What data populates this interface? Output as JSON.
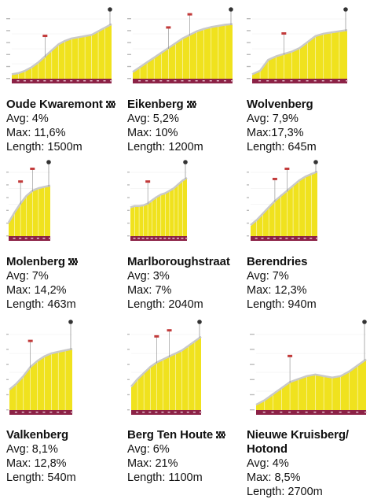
{
  "colors": {
    "fill": "#f0e21e",
    "edge": "#c9c9c9",
    "axis": "#8c2246",
    "text": "#111111"
  },
  "cobble_icon": "cobblestone-icon",
  "climbs": [
    {
      "id": "oude-kwaremont",
      "title": "Oude Kwaremont",
      "cobbled": true,
      "title_line2": "",
      "avg": "Avg: 4%",
      "max": "Max: 11,6%",
      "length": "Length: 1500m",
      "profile_level": [
        0.06,
        0.08,
        0.12,
        0.18,
        0.26,
        0.36,
        0.46,
        0.56,
        0.62,
        0.66,
        0.68,
        0.7,
        0.72,
        0.78,
        0.84,
        0.9
      ]
    },
    {
      "id": "eikenberg",
      "title": "Eikenberg",
      "cobbled": true,
      "title_line2": "",
      "avg": "Avg: 5,2%",
      "max": "Max: 10%",
      "length": "Length: 1200m",
      "profile_level": [
        0.1,
        0.18,
        0.26,
        0.34,
        0.42,
        0.5,
        0.58,
        0.66,
        0.72,
        0.78,
        0.82,
        0.85,
        0.87,
        0.89,
        0.9
      ]
    },
    {
      "id": "wolvenberg",
      "title": "Wolvenberg",
      "cobbled": false,
      "title_line2": "",
      "avg": "Avg: 7,9%",
      "max": "Max:17,3%",
      "length": "Length: 645m",
      "profile_level": [
        0.06,
        0.12,
        0.3,
        0.36,
        0.4,
        0.44,
        0.5,
        0.6,
        0.7,
        0.74,
        0.76,
        0.78,
        0.8
      ]
    },
    {
      "id": "molenberg",
      "title": "Molenberg",
      "cobbled": true,
      "title_line2": "",
      "avg": "Avg: 7%",
      "max": "Max: 14,2%",
      "length": "Length: 463m",
      "profile_level": [
        0.2,
        0.36,
        0.5,
        0.62,
        0.7,
        0.74,
        0.76,
        0.78
      ]
    },
    {
      "id": "marlboroughstraat",
      "title": "Marlboroughstraat",
      "cobbled": false,
      "title_line2": "",
      "avg": "Avg: 3%",
      "max": "Max: 7%",
      "length": "Length: 2040m",
      "profile_level": [
        0.44,
        0.46,
        0.46,
        0.47,
        0.5,
        0.55,
        0.6,
        0.64,
        0.66,
        0.7,
        0.74,
        0.8,
        0.86,
        0.9
      ]
    },
    {
      "id": "berendries",
      "title": "Berendries",
      "cobbled": false,
      "title_line2": "",
      "avg": "Avg: 7%",
      "max": "Max: 12,3%",
      "length": "Length: 940m",
      "profile_level": [
        0.16,
        0.24,
        0.34,
        0.44,
        0.54,
        0.62,
        0.7,
        0.78,
        0.86,
        0.92,
        0.96,
        1.0
      ]
    },
    {
      "id": "valkenberg",
      "title": "Valkenberg",
      "cobbled": false,
      "title_line2": "",
      "avg": "Avg: 8,1%",
      "max": "Max: 12,8%",
      "length": "Length: 540m",
      "profile_level": [
        0.26,
        0.34,
        0.44,
        0.56,
        0.64,
        0.7,
        0.74,
        0.76,
        0.78,
        0.8
      ]
    },
    {
      "id": "berg-ten-houte",
      "title": "Berg Ten Houte",
      "cobbled": true,
      "title_line2": "",
      "avg": "Avg: 6%",
      "max": "Max: 21%",
      "length": "Length: 1100m",
      "profile_level": [
        0.3,
        0.4,
        0.48,
        0.56,
        0.62,
        0.66,
        0.7,
        0.74,
        0.78,
        0.84,
        0.9,
        0.96
      ]
    },
    {
      "id": "nieuwe-kruisberg",
      "title": "Nieuwe Kruisberg/",
      "cobbled": false,
      "title_line2": "Hotond",
      "avg": "Avg: 4%",
      "max": "Max: 8,5%",
      "length": "Length: 2700m",
      "profile_level": [
        0.06,
        0.12,
        0.2,
        0.28,
        0.36,
        0.4,
        0.44,
        0.46,
        0.44,
        0.42,
        0.44,
        0.5,
        0.58,
        0.66
      ]
    }
  ]
}
